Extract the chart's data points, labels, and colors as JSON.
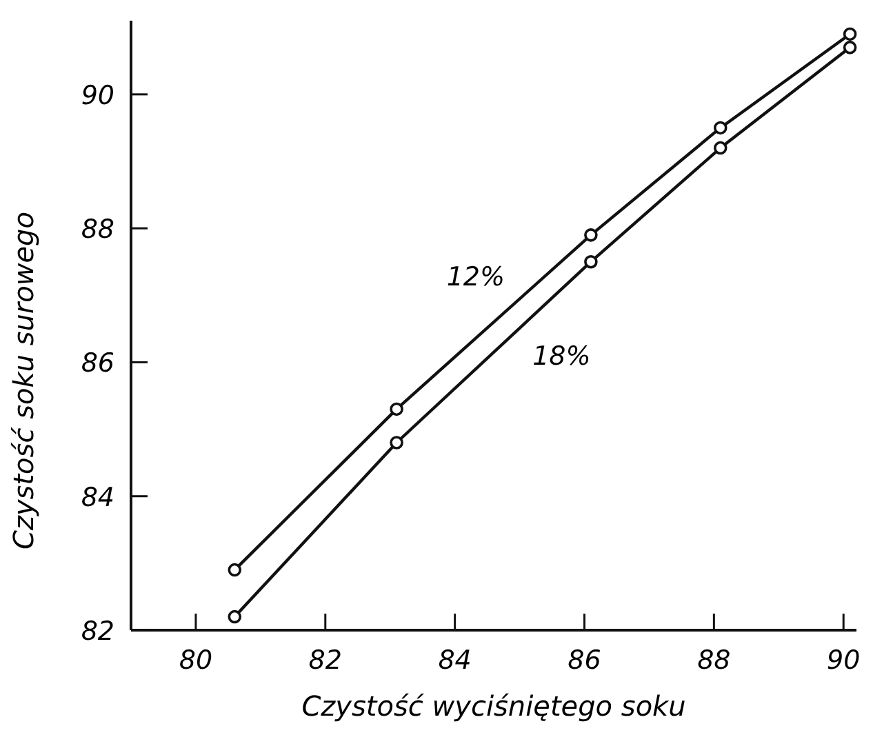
{
  "chart_data": {
    "type": "line",
    "xlabel": "Czystość wyciśniętego soku",
    "ylabel": "Czystość soku surowego",
    "x": [
      80.6,
      83.1,
      86.1,
      88.1,
      90.1
    ],
    "series": [
      {
        "name": "12%",
        "color": "#111111",
        "values": [
          82.9,
          85.3,
          87.9,
          89.5,
          90.9
        ]
      },
      {
        "name": "18%",
        "color": "#111111",
        "values": [
          82.2,
          84.8,
          87.5,
          89.2,
          90.7
        ]
      }
    ],
    "xlim": [
      79,
      90.2
    ],
    "ylim": [
      82,
      91.1
    ],
    "xticks": [
      80,
      82,
      84,
      86,
      88,
      90
    ],
    "yticks": [
      82,
      84,
      86,
      88,
      90
    ],
    "grid": false,
    "marker": "circle",
    "line_style": "solid"
  }
}
